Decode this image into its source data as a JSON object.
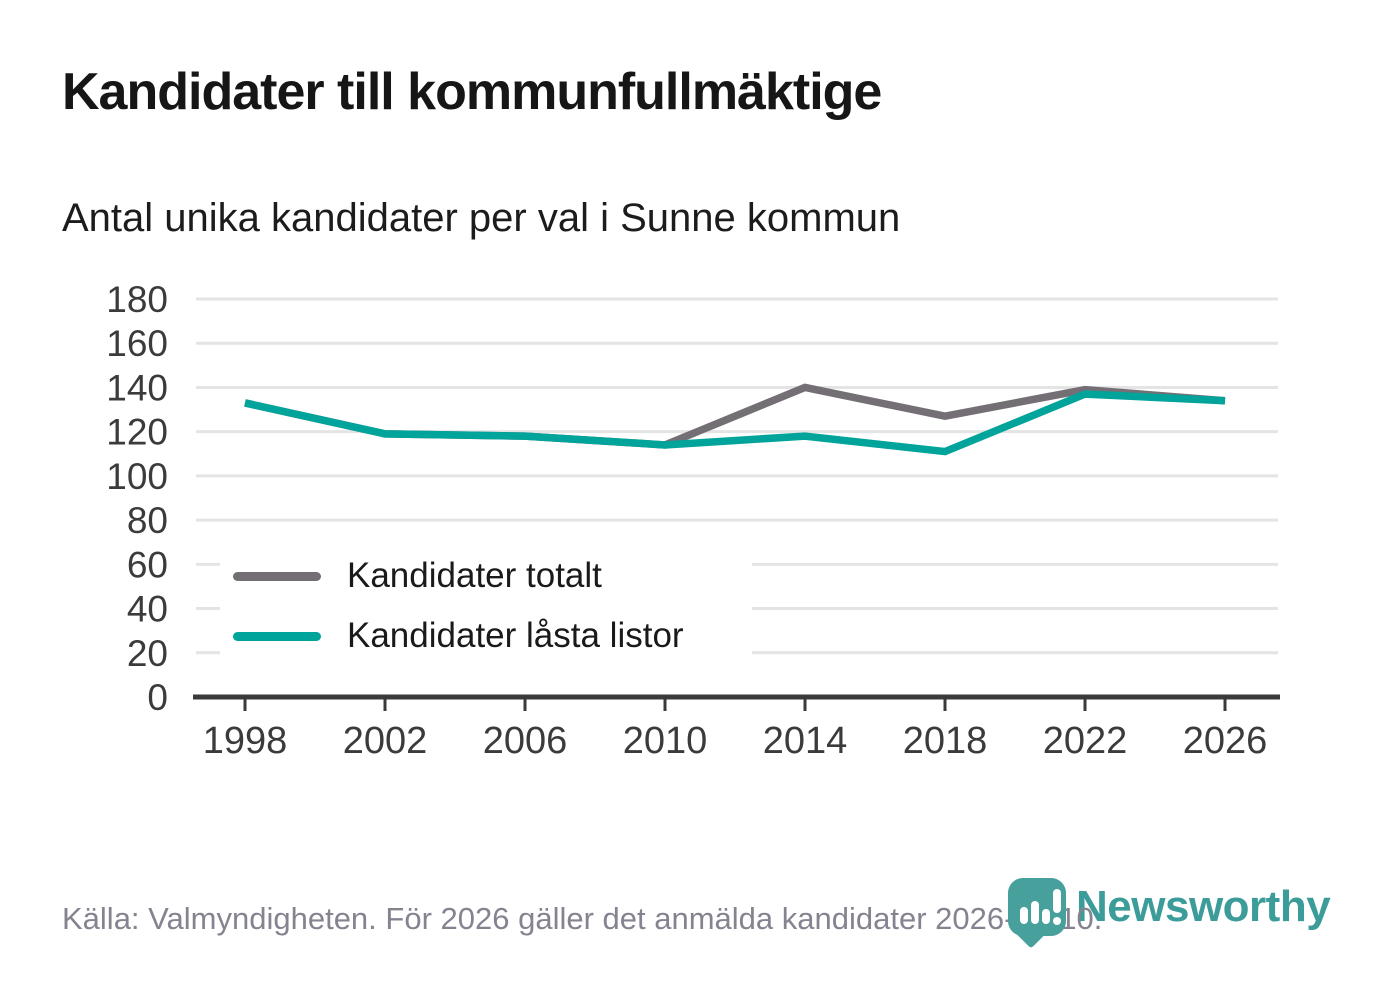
{
  "title": "Kandidater till kommunfullmäktige",
  "subtitle": "Antal unika kandidater per val i Sunne kommun",
  "legend": {
    "items": [
      {
        "label": "Kandidater totalt",
        "series_key": "total"
      },
      {
        "label": "Kandidater låsta listor",
        "series_key": "locked"
      }
    ]
  },
  "footer": {
    "source": "Källa: Valmyndigheten. För 2026 gäller det anmälda kandidater 2026-04-10."
  },
  "logo": {
    "brand": "Newsworthy"
  },
  "colors": {
    "total_line": "#746F75",
    "locked_line": "#00A49A",
    "gridline": "#E4E4E4",
    "axis": "#3A3A3A",
    "tick_label": "#3B3B3B",
    "title_text": "#161616",
    "footer_text": "#868391",
    "logo_teal": "#47A09C",
    "wordmark_teal": "#3B9C99"
  },
  "chart_data": {
    "type": "line",
    "x": [
      1998,
      2002,
      2006,
      2010,
      2014,
      2018,
      2022,
      2026
    ],
    "series": [
      {
        "name": "Kandidater totalt",
        "color": "#746F75",
        "values": [
          133,
          119,
          118,
          114,
          140,
          127,
          139,
          134
        ]
      },
      {
        "name": "Kandidater låsta listor",
        "color": "#00A49A",
        "values": [
          133,
          119,
          118,
          114,
          118,
          111,
          137,
          134
        ]
      }
    ],
    "ylim": [
      0,
      180
    ],
    "yticks": [
      0,
      20,
      40,
      60,
      80,
      100,
      120,
      140,
      160,
      180
    ],
    "grid": true,
    "legend_position": "inside-bottom-left",
    "title": "Kandidater till kommunfullmäktige",
    "subtitle": "Antal unika kandidater per val i Sunne kommun"
  }
}
